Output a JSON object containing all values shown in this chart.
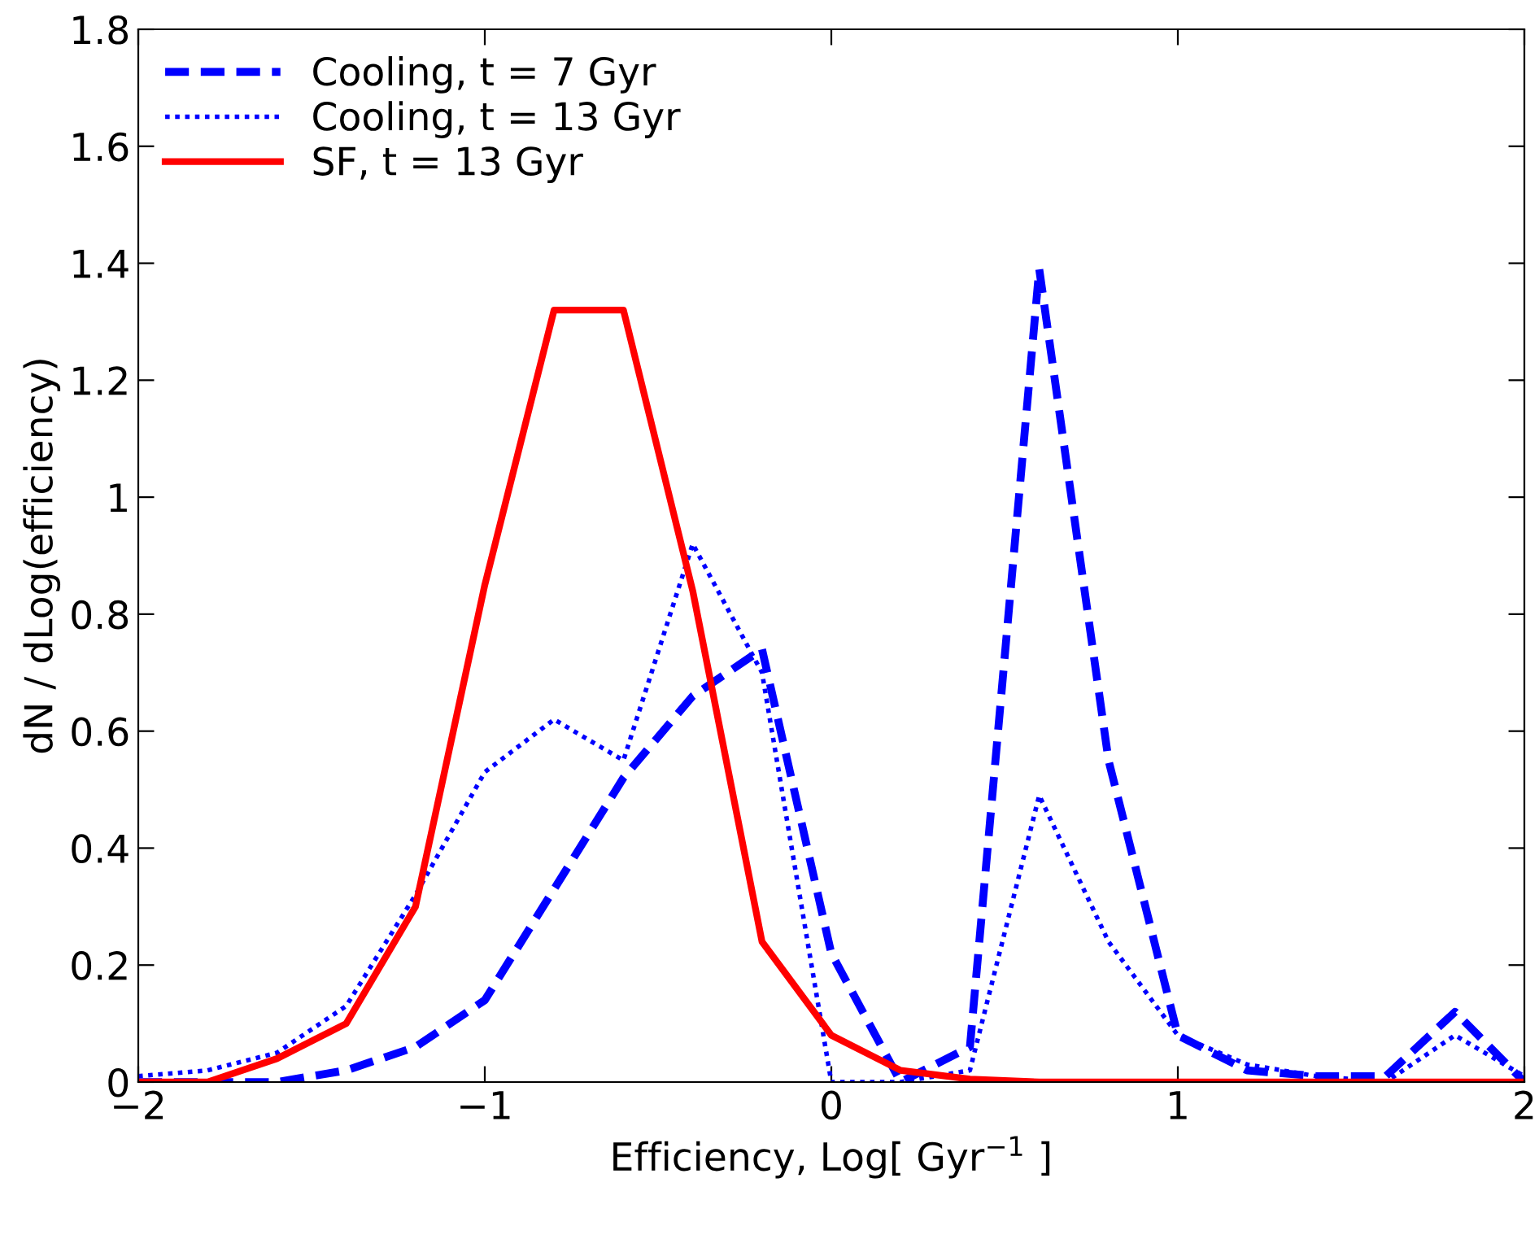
{
  "chart_data": {
    "type": "line",
    "xlabel": "Efficiency, Log[ Gyr$^{−1}$ ]",
    "ylabel": "dN / dLog(efficiency)",
    "x": [
      -2,
      -1.8,
      -1.6,
      -1.4,
      -1.2,
      -1.0,
      -0.8,
      -0.6,
      -0.4,
      -0.2,
      0,
      0.2,
      0.4,
      0.6,
      0.8,
      1.0,
      1.2,
      1.4,
      1.6,
      1.8,
      2.0
    ],
    "series": [
      {
        "name": "Cooling, t = 7 Gyr",
        "color": "#0000ff",
        "line_style": "dashed",
        "values": [
          0,
          0,
          0,
          0.02,
          0.06,
          0.14,
          0.33,
          0.52,
          0.66,
          0.74,
          0.22,
          0,
          0.06,
          1.39,
          0.55,
          0.08,
          0.02,
          0.01,
          0.01,
          0.12,
          0
        ]
      },
      {
        "name": "Cooling, t = 13 Gyr",
        "color": "#0000ff",
        "line_style": "dotted",
        "values": [
          0.01,
          0.02,
          0.05,
          0.13,
          0.32,
          0.53,
          0.62,
          0.55,
          0.92,
          0.7,
          0,
          0,
          0.02,
          0.49,
          0.24,
          0.08,
          0.03,
          0.01,
          0,
          0.08,
          0.01
        ]
      },
      {
        "name": "SF, t = 13 Gyr",
        "color": "#ff0000",
        "line_style": "solid",
        "values": [
          0,
          0,
          0.04,
          0.1,
          0.3,
          0.85,
          1.32,
          1.32,
          0.84,
          0.24,
          0.08,
          0.02,
          0.005,
          0,
          0,
          0,
          0,
          0,
          0,
          0,
          0
        ]
      }
    ],
    "xlim": [
      -2,
      2
    ],
    "ylim": [
      0,
      1.8
    ],
    "xticks": [
      -2,
      -1,
      0,
      1,
      2
    ],
    "yticks": [
      0,
      0.2,
      0.4,
      0.6,
      0.8,
      1,
      1.2,
      1.4,
      1.6,
      1.8
    ],
    "grid": false,
    "legend": "top left",
    "marker": "none"
  }
}
